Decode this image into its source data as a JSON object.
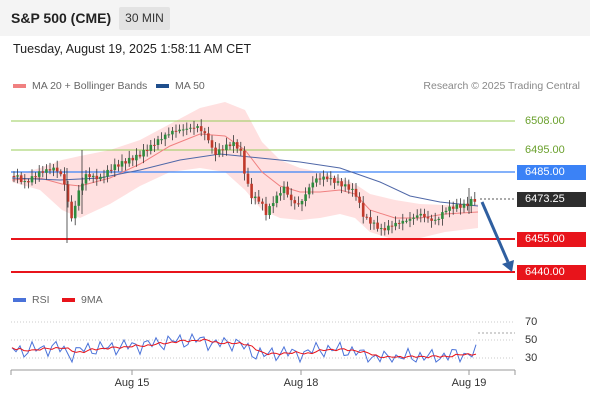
{
  "header": {
    "title": "S&P 500 (CME)",
    "timeframe": "30 MIN"
  },
  "datetime": "Tuesday, August 19, 2025 1:58:11 AM CET",
  "legend": {
    "bollinger": {
      "label": "MA 20 + Bollinger Bands",
      "color": "#f08080"
    },
    "ma50": {
      "label": "MA 50",
      "color": "#1f4e8c"
    }
  },
  "copyright": "Research © 2025 Trading Central",
  "levels": {
    "r2": "6508.00",
    "r1": "6495.00",
    "pivot": "6485.00",
    "current": "6473.25",
    "s1": "6455.00",
    "s2": "6440.00"
  },
  "colors": {
    "resistance": "#9acd5a",
    "pivot": "#3b82f6",
    "support": "#e8141b",
    "current_bg": "#2d2d2d",
    "arrow": "#2f5fa0",
    "candle_up": "#2e8b3e",
    "candle_down": "#c0392b",
    "band_fill": "#ffd6d6",
    "rsi": "#4a72d9",
    "rsi_ma": "#e8141b"
  },
  "rsi_panel": {
    "legend_rsi": "RSI",
    "legend_ma": "9MA",
    "levels": [
      "70",
      "50",
      "30"
    ]
  },
  "x_axis": {
    "dates": [
      "Aug 15",
      "Aug 18",
      "Aug 19"
    ]
  }
}
